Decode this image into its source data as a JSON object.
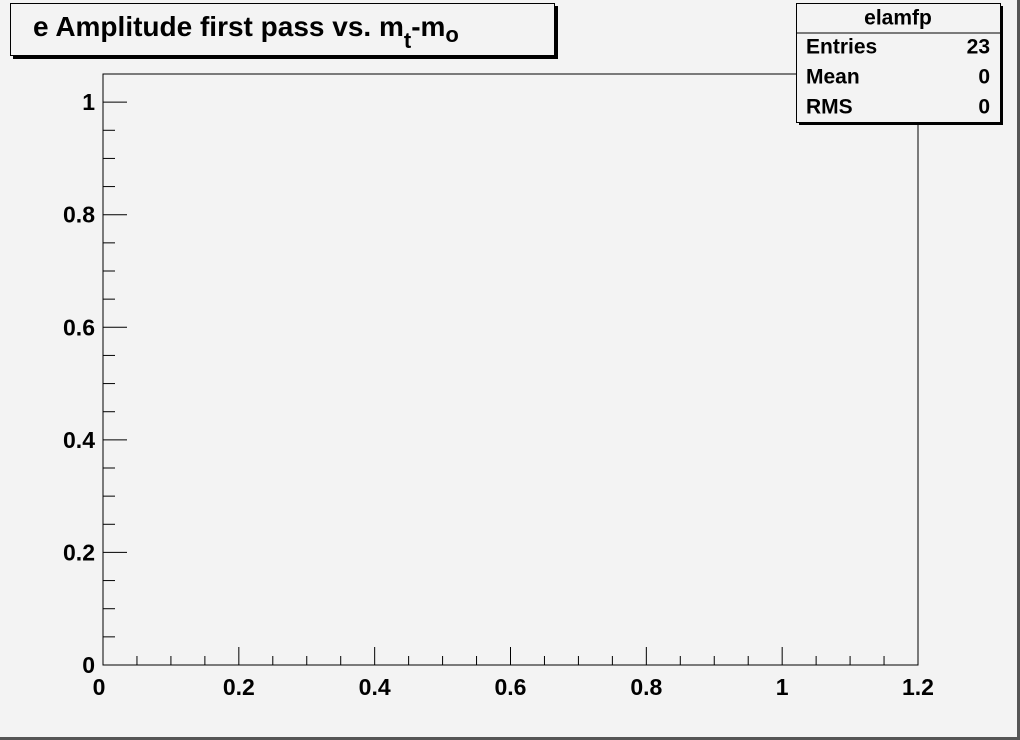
{
  "chart_data": {
    "type": "histogram",
    "title": [
      "e Amplitude first pass vs. m",
      "t",
      "-m",
      "o"
    ],
    "xlim": [
      0,
      1.2
    ],
    "xticks": [
      0,
      0.2,
      0.4,
      0.6,
      0.8,
      1,
      1.2
    ],
    "ylim": [
      0,
      1.05
    ],
    "yticks": [
      0,
      0.2,
      0.4,
      0.6,
      0.8,
      1
    ],
    "stats": {
      "name": "elamfp",
      "rows": [
        [
          "Entries",
          23
        ],
        [
          "Mean",
          0
        ],
        [
          "RMS",
          0
        ]
      ]
    }
  }
}
